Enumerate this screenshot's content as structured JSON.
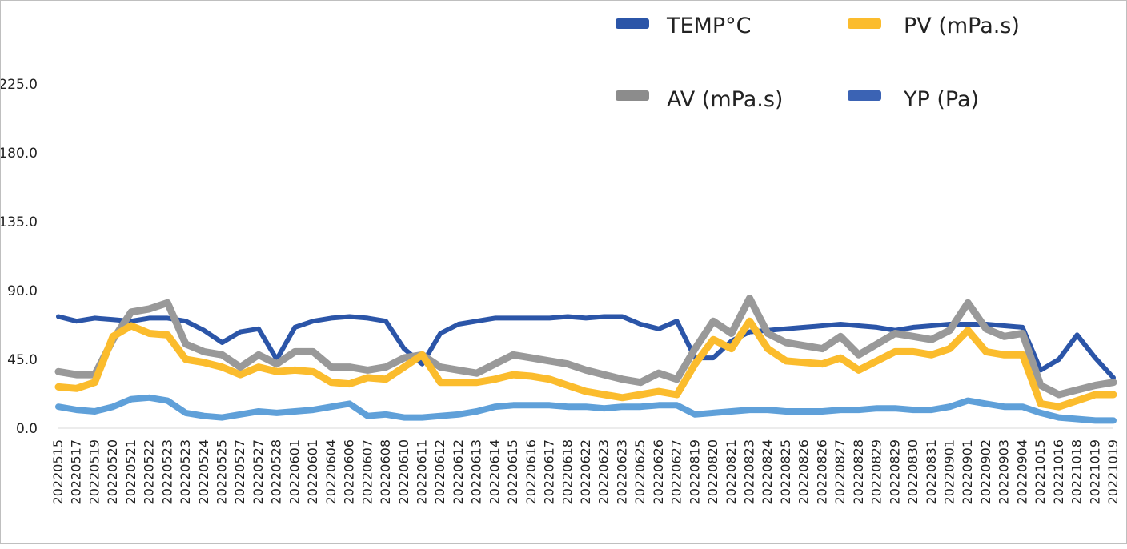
{
  "chart_data": {
    "type": "line",
    "title": "",
    "xlabel": "",
    "ylabel": "",
    "ylim": [
      0,
      250
    ],
    "yticks": [
      "0.0",
      "45.0",
      "90.0",
      "135.0",
      "180.0",
      "225.0"
    ],
    "ytick_values": [
      0,
      45,
      90,
      135,
      180,
      225
    ],
    "categories": [
      "20220515",
      "20220517",
      "20220519",
      "20220520",
      "20220521",
      "20220522",
      "20220523",
      "20220523",
      "20220524",
      "20220525",
      "20220527",
      "20220527",
      "20220528",
      "20220601",
      "20220601",
      "20220604",
      "20220606",
      "20220607",
      "20220608",
      "20220610",
      "20220611",
      "20220612",
      "20220612",
      "20220613",
      "20220614",
      "20220615",
      "20220616",
      "20220617",
      "20220618",
      "20220622",
      "20220623",
      "20220623",
      "20220625",
      "20220626",
      "20220627",
      "20220819",
      "20220820",
      "20220821",
      "20220823",
      "20220824",
      "20220825",
      "20220826",
      "20220826",
      "20220827",
      "20220828",
      "20220829",
      "20220829",
      "20220830",
      "20220831",
      "20220901",
      "20220901",
      "20220902",
      "20220903",
      "20220904",
      "20221015",
      "20221016",
      "20221018",
      "20221019",
      "20221019"
    ],
    "legend": [
      {
        "name": "TEMP°C",
        "color": "#2b55a8"
      },
      {
        "name": "PV (mPa.s)",
        "color": "#fbbc2d"
      },
      {
        "name": "AV (mPa.s)",
        "color": "#8c8c8c"
      },
      {
        "name": "YP (Pa)",
        "color": "#3b63b4"
      }
    ],
    "series": [
      {
        "name": "TEMP°C",
        "color": "#2b55a8",
        "values": [
          73,
          70,
          72,
          71,
          70,
          72,
          72,
          70,
          64,
          56,
          63,
          65,
          45,
          66,
          70,
          72,
          73,
          72,
          70,
          52,
          42,
          62,
          68,
          70,
          72,
          72,
          72,
          72,
          73,
          72,
          73,
          73,
          68,
          65,
          70,
          46,
          46,
          57,
          63,
          64,
          65,
          66,
          67,
          68,
          67,
          66,
          64,
          66,
          67,
          68,
          68,
          68,
          67,
          66,
          38,
          45,
          61,
          46,
          33
        ]
      },
      {
        "name": "AV (mPa.s)",
        "color": "#999999",
        "values": [
          37,
          35,
          35,
          58,
          76,
          78,
          82,
          55,
          50,
          48,
          40,
          48,
          42,
          50,
          50,
          40,
          40,
          38,
          40,
          46,
          48,
          40,
          38,
          36,
          42,
          48,
          46,
          44,
          42,
          38,
          35,
          32,
          30,
          36,
          32,
          52,
          70,
          62,
          85,
          62,
          56,
          54,
          52,
          60,
          48,
          55,
          62,
          60,
          58,
          64,
          82,
          65,
          60,
          62,
          28,
          22,
          25,
          28,
          30
        ]
      },
      {
        "name": "PV (mPa.s)",
        "color": "#fbbc2d",
        "values": [
          27,
          26,
          30,
          60,
          67,
          62,
          61,
          45,
          43,
          40,
          35,
          40,
          37,
          38,
          37,
          30,
          29,
          33,
          32,
          40,
          48,
          30,
          30,
          30,
          32,
          35,
          34,
          32,
          28,
          24,
          22,
          20,
          22,
          24,
          22,
          42,
          58,
          52,
          70,
          52,
          44,
          43,
          42,
          46,
          38,
          44,
          50,
          50,
          48,
          52,
          64,
          50,
          48,
          48,
          16,
          14,
          18,
          22,
          22
        ]
      },
      {
        "name": "YP (Pa)",
        "color": "#5fa0d9",
        "values": [
          14,
          12,
          11,
          14,
          19,
          20,
          18,
          10,
          8,
          7,
          9,
          11,
          10,
          11,
          12,
          14,
          16,
          8,
          9,
          7,
          7,
          8,
          9,
          11,
          14,
          15,
          15,
          15,
          14,
          14,
          13,
          14,
          14,
          15,
          15,
          9,
          10,
          11,
          12,
          12,
          11,
          11,
          11,
          12,
          12,
          13,
          13,
          12,
          12,
          14,
          18,
          16,
          14,
          14,
          10,
          7,
          6,
          5,
          5
        ]
      }
    ]
  }
}
